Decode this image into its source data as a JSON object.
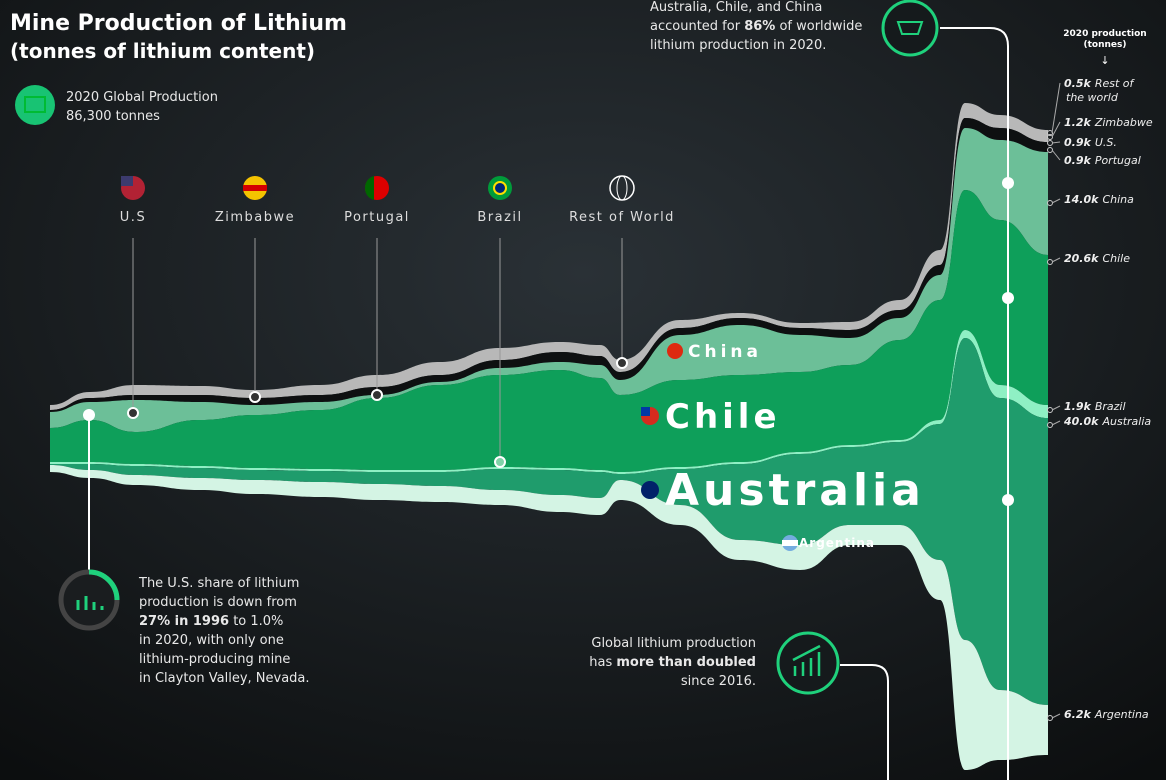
{
  "title": "Mine Production of Lithium",
  "subtitle": "(tonnes of lithium content)",
  "global": {
    "label": "2020 Global Production",
    "value": "86,300 tonnes"
  },
  "top_note": [
    [
      {
        "text": "Australia, Chile, and China"
      }
    ],
    [
      {
        "text": "accounted for "
      },
      {
        "text": "86%",
        "bold": true
      },
      {
        "text": " of worldwide"
      }
    ],
    [
      {
        "text": "lithium production in 2020."
      }
    ]
  ],
  "flags": [
    "U.S",
    "Zimbabwe",
    "Portugal",
    "Brazil",
    "Rest of World"
  ],
  "streams": [
    "China",
    "Chile",
    "Australia",
    "Argentina"
  ],
  "legend_header": [
    "2020 production",
    "(tonnes)"
  ],
  "end_labels": [
    {
      "value": "0.5k",
      "name": [
        "Rest of",
        "the world"
      ]
    },
    {
      "value": "1.2k",
      "name": [
        "Zimbabwe"
      ]
    },
    {
      "value": "0.9k",
      "name": [
        "U.S."
      ]
    },
    {
      "value": "0.9k",
      "name": [
        "Portugal"
      ]
    },
    {
      "value": "14.0k",
      "name": [
        "China"
      ]
    },
    {
      "value": "20.6k",
      "name": [
        "Chile"
      ]
    },
    {
      "value": "1.9k",
      "name": [
        "Brazil"
      ]
    },
    {
      "value": "40.0k",
      "name": [
        "Australia"
      ]
    },
    {
      "value": "6.2k",
      "name": [
        "Argentina"
      ]
    }
  ],
  "left_note": [
    [
      {
        "text": "The U.S. share of lithium"
      }
    ],
    [
      {
        "text": "production is down from"
      }
    ],
    [
      {
        "text": "27% in 1996",
        "bold": true
      },
      {
        "text": " to 1.0%"
      }
    ],
    [
      {
        "text": "in 2020, with only one"
      }
    ],
    [
      {
        "text": "lithium-producing mine"
      }
    ],
    [
      {
        "text": "in Clayton Valley, Nevada."
      }
    ]
  ],
  "right_note": [
    [
      {
        "text": "Global lithium production"
      }
    ],
    [
      {
        "text": "has "
      },
      {
        "text": "more than doubled",
        "bold": true
      }
    ],
    [
      {
        "text": "since 2016."
      }
    ]
  ]
}
